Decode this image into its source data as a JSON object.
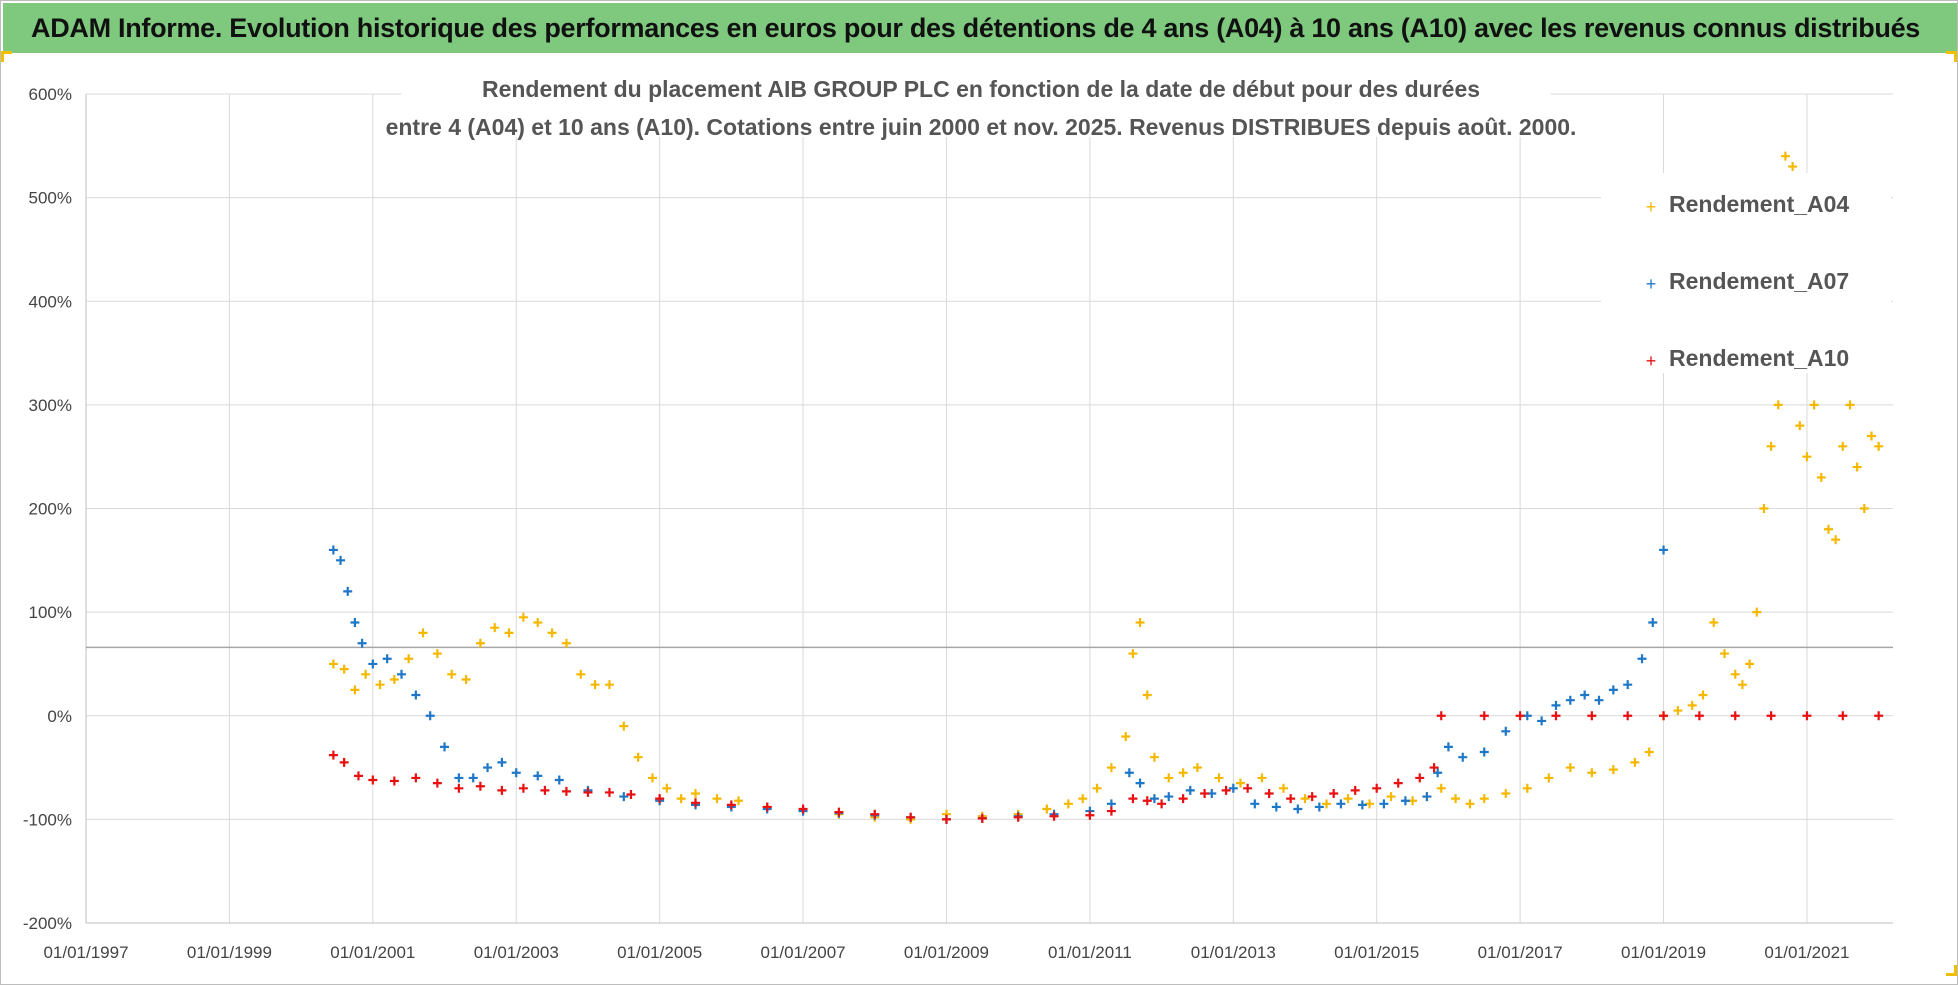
{
  "header": {
    "title": "ADAM Informe. Evolution historique des performances en euros pour des détentions de 4 ans (A04) à 10 ans (A10) avec les revenus connus distribués"
  },
  "chart_data": {
    "type": "scatter",
    "title_line1": "Rendement du placement AIB GROUP PLC en fonction de la date de début pour des durées",
    "title_line2": "entre 4 (A04) et 10 ans (A10).  Cotations entre juin 2000 et nov. 2025.  Revenus DISTRIBUES depuis août. 2000.",
    "xlabel": "",
    "ylabel": "",
    "xlim": [
      1997.0,
      2022.2
    ],
    "ylim": [
      -200,
      600
    ],
    "yticks": [
      600,
      500,
      400,
      300,
      200,
      100,
      0,
      -100,
      -200
    ],
    "ytick_labels": [
      "600%",
      "500%",
      "400%",
      "300%",
      "200%",
      "100%",
      "0%",
      "-100%",
      "-200%"
    ],
    "xticks": [
      1997,
      1999,
      2001,
      2003,
      2005,
      2007,
      2009,
      2011,
      2013,
      2015,
      2017,
      2019,
      2021
    ],
    "xtick_labels": [
      "01/01/1997",
      "01/01/1999",
      "01/01/2001",
      "01/01/2003",
      "01/01/2005",
      "01/01/2007",
      "01/01/2009",
      "01/01/2011",
      "01/01/2013",
      "01/01/2015",
      "01/01/2017",
      "01/01/2019",
      "01/01/2021"
    ],
    "reference_line_y": 66,
    "grid": true,
    "legend_position": "top-right",
    "series": [
      {
        "name": "Rendement_A04",
        "color": "#f5b800",
        "x": [
          2000.45,
          2000.6,
          2000.75,
          2000.9,
          2001.1,
          2001.3,
          2001.5,
          2001.7,
          2001.9,
          2002.1,
          2002.3,
          2002.5,
          2002.7,
          2002.9,
          2003.1,
          2003.3,
          2003.5,
          2003.7,
          2003.9,
          2004.1,
          2004.3,
          2004.5,
          2004.7,
          2004.9,
          2005.1,
          2005.3,
          2005.5,
          2005.8,
          2006.1,
          2006.5,
          2007.0,
          2007.5,
          2008.0,
          2008.5,
          2009.0,
          2009.5,
          2010.0,
          2010.4,
          2010.7,
          2010.9,
          2011.1,
          2011.3,
          2011.5,
          2011.6,
          2011.7,
          2011.8,
          2011.9,
          2012.1,
          2012.3,
          2012.5,
          2012.8,
          2013.1,
          2013.4,
          2013.7,
          2014.0,
          2014.3,
          2014.6,
          2014.9,
          2015.2,
          2015.5,
          2015.7,
          2015.9,
          2016.1,
          2016.3,
          2016.5,
          2016.8,
          2017.1,
          2017.4,
          2017.7,
          2018.0,
          2018.3,
          2018.6,
          2018.8,
          2019.0,
          2019.2,
          2019.4,
          2019.55,
          2019.7,
          2019.85,
          2020.0,
          2020.1,
          2020.2,
          2020.3,
          2020.4,
          2020.5,
          2020.6,
          2020.7,
          2020.8,
          2020.9,
          2021.0,
          2021.1,
          2021.2,
          2021.3,
          2021.4,
          2021.5,
          2021.6,
          2021.7,
          2021.8,
          2021.9,
          2022.0
        ],
        "y": [
          50,
          45,
          25,
          40,
          30,
          35,
          55,
          80,
          60,
          40,
          35,
          70,
          85,
          80,
          95,
          90,
          80,
          70,
          40,
          30,
          30,
          -10,
          -40,
          -60,
          -70,
          -80,
          -75,
          -80,
          -82,
          -88,
          -92,
          -95,
          -98,
          -100,
          -95,
          -97,
          -95,
          -90,
          -85,
          -80,
          -70,
          -50,
          -20,
          60,
          90,
          20,
          -40,
          -60,
          -55,
          -50,
          -60,
          -65,
          -60,
          -70,
          -80,
          -85,
          -80,
          -85,
          -78,
          -82,
          -78,
          -70,
          -80,
          -85,
          -80,
          -75,
          -70,
          -60,
          -50,
          -55,
          -52,
          -45,
          -35,
          0,
          5,
          10,
          20,
          90,
          60,
          40,
          30,
          50,
          100,
          200,
          260,
          300,
          540,
          530,
          280,
          250,
          300,
          230,
          180,
          170,
          260,
          300,
          240,
          200,
          270,
          260
        ]
      },
      {
        "name": "Rendement_A07",
        "color": "#1f77c8",
        "x": [
          2000.45,
          2000.55,
          2000.65,
          2000.75,
          2000.85,
          2001.0,
          2001.2,
          2001.4,
          2001.6,
          2001.8,
          2002.0,
          2002.2,
          2002.4,
          2002.6,
          2002.8,
          2003.0,
          2003.3,
          2003.6,
          2004.0,
          2004.5,
          2005.0,
          2005.5,
          2006.0,
          2006.5,
          2007.0,
          2007.5,
          2008.0,
          2008.5,
          2009.0,
          2009.5,
          2010.0,
          2010.5,
          2011.0,
          2011.3,
          2011.55,
          2011.7,
          2011.9,
          2012.1,
          2012.4,
          2012.7,
          2013.0,
          2013.3,
          2013.6,
          2013.9,
          2014.2,
          2014.5,
          2014.8,
          2015.1,
          2015.4,
          2015.7,
          2015.85,
          2016.0,
          2016.2,
          2016.5,
          2016.8,
          2017.1,
          2017.3,
          2017.5,
          2017.7,
          2017.9,
          2018.1,
          2018.3,
          2018.5,
          2018.7,
          2018.85,
          2019.0
        ],
        "y": [
          160,
          150,
          120,
          90,
          70,
          50,
          55,
          40,
          20,
          0,
          -30,
          -60,
          -60,
          -50,
          -45,
          -55,
          -58,
          -62,
          -72,
          -78,
          -82,
          -86,
          -88,
          -90,
          -92,
          -94,
          -96,
          -98,
          -100,
          -99,
          -97,
          -95,
          -92,
          -85,
          -55,
          -65,
          -80,
          -78,
          -72,
          -75,
          -70,
          -85,
          -88,
          -90,
          -88,
          -85,
          -86,
          -85,
          -82,
          -78,
          -55,
          -30,
          -40,
          -35,
          -15,
          0,
          -5,
          10,
          15,
          20,
          15,
          25,
          30,
          55,
          90,
          160
        ]
      },
      {
        "name": "Rendement_A10",
        "color": "#e81010",
        "x": [
          2000.45,
          2000.6,
          2000.8,
          2001.0,
          2001.3,
          2001.6,
          2001.9,
          2002.2,
          2002.5,
          2002.8,
          2003.1,
          2003.4,
          2003.7,
          2004.0,
          2004.3,
          2004.6,
          2005.0,
          2005.5,
          2006.0,
          2006.5,
          2007.0,
          2007.5,
          2008.0,
          2008.5,
          2009.0,
          2009.5,
          2010.0,
          2010.5,
          2011.0,
          2011.3,
          2011.6,
          2011.8,
          2012.0,
          2012.3,
          2012.6,
          2012.9,
          2013.2,
          2013.5,
          2013.8,
          2014.1,
          2014.4,
          2014.7,
          2015.0,
          2015.3,
          2015.6,
          2015.8,
          2015.9,
          2016.5,
          2017.0,
          2017.5,
          2018.0,
          2018.5,
          2019.0,
          2019.5,
          2020.0,
          2020.5,
          2021.0,
          2021.5,
          2022.0
        ],
        "y": [
          -38,
          -45,
          -58,
          -62,
          -63,
          -60,
          -65,
          -70,
          -68,
          -72,
          -70,
          -72,
          -73,
          -74,
          -74,
          -76,
          -80,
          -84,
          -86,
          -88,
          -90,
          -93,
          -95,
          -98,
          -100,
          -99,
          -98,
          -97,
          -96,
          -92,
          -80,
          -82,
          -85,
          -80,
          -75,
          -72,
          -70,
          -75,
          -80,
          -78,
          -75,
          -72,
          -70,
          -65,
          -60,
          -50,
          0,
          0,
          0,
          0,
          0,
          0,
          0,
          0,
          0,
          0,
          0,
          0,
          0
        ]
      }
    ]
  }
}
